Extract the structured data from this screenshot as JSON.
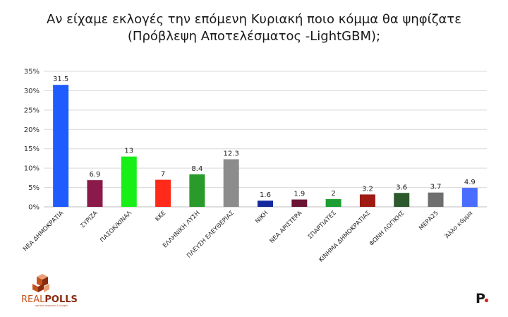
{
  "chart_data": {
    "type": "bar",
    "title": "Αν είχαμε εκλογές την επόμενη Κυριακή ποιο κόμμα θα ψηφίζατε",
    "subtitle": "(Πρόβλεψη Αποτελέσματος -LightGBM);",
    "xlabel": "",
    "ylabel": "",
    "ylim": [
      0,
      35
    ],
    "yticks": [
      "0%",
      "5%",
      "10%",
      "15%",
      "20%",
      "25%",
      "30%",
      "35%"
    ],
    "grid": true,
    "categories": [
      "ΝΕΑ ΔΗΜΟΚΡΑΤΙΑ",
      "ΣΥΡΙΖΑ",
      "ΠΑΣΟΚ/ΚΙΝΑΛ",
      "ΚΚΕ",
      "ΕΛΛΗΝΙΚΗ ΛΥΣΗ",
      "ΠΛΕΥΣΗ ΕΛΕΥΘΕΡΙΑΣ",
      "ΝΙΚΗ",
      "ΝΕΑ ΑΡΙΣΤΕΡΑ",
      "ΣΠΑΡΤΙΑΤΕΣ",
      "ΚΙΝΗΜΑ ΔΗΜΟΚΡΑΤΙΑΣ",
      "ΦΩΝΗ ΛΟΓΙΚΗΣ",
      "ΜΕΡΑ25",
      "Άλλο κόμμα"
    ],
    "values": [
      31.5,
      6.9,
      13,
      7,
      8.4,
      12.3,
      1.6,
      1.9,
      2,
      3.2,
      3.6,
      3.7,
      4.9
    ],
    "value_labels": [
      "31.5",
      "6.9",
      "13",
      "7",
      "8.4",
      "12.3",
      "1.6",
      "1.9",
      "2",
      "3.2",
      "3.6",
      "3.7",
      "4.9"
    ],
    "colors": [
      "#1f5cff",
      "#8b1a4a",
      "#18ef18",
      "#ff2a1a",
      "#2a9a2a",
      "#8c8c8c",
      "#132a9e",
      "#6b1535",
      "#1c9e32",
      "#9e1a12",
      "#2d5a2d",
      "#6e6e6e",
      "#4a6cff"
    ]
  },
  "logo": {
    "text_real": "REAL",
    "text_polls": "POLLS",
    "tagline": "opinion research & insight",
    "icon": "cube-stack-icon",
    "color_dark": "#8a2a0e",
    "color_mid": "#c5541c",
    "color_light": "#e8a077"
  },
  "brand_mark": {
    "letter": "P",
    "dot_color": "#e2231a"
  }
}
